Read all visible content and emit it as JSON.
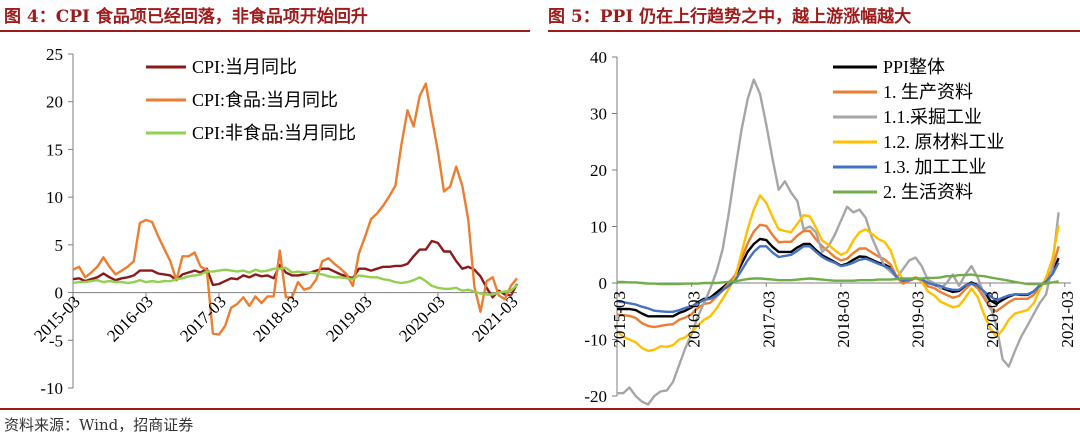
{
  "left_title": "图 4：CPI 食品项已经回落，非食品项开始回升",
  "right_title": "图 5：PPI 仍在上行趋势之中，越上游涨幅越大",
  "source": "资料来源：Wind，招商证券",
  "chart_data": [
    {
      "type": "line",
      "ylim": [
        -10,
        25
      ],
      "yticks": [
        -10,
        -5,
        0,
        5,
        10,
        15,
        20,
        25
      ],
      "x_start": "2015-03",
      "x_end": "2021-04",
      "xtick_labels": [
        "2015-03",
        "2016-03",
        "2017-03",
        "2018-03",
        "2019-03",
        "2020-03",
        "2021-03"
      ],
      "legend_position": "top-left",
      "series": [
        {
          "name": "CPI:当月同比",
          "color": "#8b1a1a",
          "values": [
            1.4,
            1.5,
            1.2,
            1.4,
            1.6,
            2.0,
            1.6,
            1.3,
            1.5,
            1.6,
            1.8,
            2.3,
            2.3,
            2.3,
            2.0,
            1.9,
            1.8,
            1.3,
            1.9,
            2.1,
            2.3,
            2.1,
            2.5,
            0.8,
            0.9,
            1.2,
            1.5,
            1.4,
            1.8,
            1.6,
            1.9,
            1.7,
            1.8,
            1.5,
            2.9,
            2.1,
            1.8,
            1.8,
            1.9,
            2.1,
            2.3,
            2.5,
            2.5,
            2.2,
            1.9,
            1.7,
            1.5,
            2.5,
            2.5,
            2.3,
            2.5,
            2.7,
            2.7,
            2.8,
            2.8,
            3.0,
            3.8,
            4.5,
            4.5,
            5.4,
            5.2,
            4.3,
            4.3,
            3.3,
            2.5,
            2.7,
            2.4,
            1.7,
            0.5,
            -0.5,
            0.2,
            -0.2,
            -0.3,
            0.9
          ]
        },
        {
          "name": "CPI:食品:当月同比",
          "color": "#ed7d31",
          "values": [
            2.4,
            2.7,
            1.6,
            2.1,
            2.7,
            3.7,
            2.7,
            1.9,
            2.3,
            2.7,
            3.3,
            7.3,
            7.6,
            7.4,
            5.9,
            4.6,
            3.3,
            1.3,
            3.8,
            3.8,
            4.2,
            2.7,
            2.4,
            -4.3,
            -4.4,
            -3.5,
            -1.6,
            -1.2,
            -0.5,
            -1.4,
            -0.4,
            -1.1,
            -0.4,
            -0.4,
            4.4,
            -0.5,
            -0.5,
            1.1,
            0.3,
            0.5,
            1.4,
            3.3,
            3.6,
            3.0,
            2.5,
            1.9,
            0.7,
            4.1,
            5.8,
            7.7,
            8.3,
            9.1,
            10.1,
            11.2,
            15.5,
            19.1,
            17.4,
            20.6,
            21.9,
            18.3,
            14.8,
            10.6,
            11.1,
            13.2,
            11.2,
            7.6,
            0.6,
            -2.0,
            1.2,
            1.6,
            -0.3,
            -0.7,
            0.7,
            1.5
          ]
        },
        {
          "name": "CPI:非食品:当月同比",
          "color": "#92d050",
          "values": [
            1.0,
            1.1,
            1.1,
            1.2,
            1.3,
            1.1,
            1.2,
            1.1,
            1.1,
            1.0,
            1.1,
            1.3,
            1.1,
            1.2,
            1.1,
            1.2,
            1.2,
            1.4,
            1.5,
            1.7,
            1.8,
            1.9,
            2.2,
            2.2,
            2.3,
            2.4,
            2.3,
            2.2,
            2.3,
            2.1,
            2.4,
            2.2,
            2.3,
            2.5,
            2.5,
            2.6,
            2.1,
            2.2,
            2.1,
            2.1,
            2.0,
            1.9,
            1.7,
            1.6,
            1.6,
            1.5,
            1.4,
            1.8,
            1.7,
            1.6,
            1.6,
            1.4,
            1.3,
            1.1,
            1.0,
            1.1,
            1.3,
            1.6,
            1.2,
            0.7,
            0.5,
            0.4,
            0.4,
            0.5,
            0.2,
            0.3,
            0.1,
            -0.1,
            -0.2,
            -0.2,
            0.0,
            0.1,
            0.2,
            0.8
          ]
        }
      ]
    },
    {
      "type": "line",
      "ylim": [
        -20,
        40
      ],
      "yticks": [
        -20,
        -10,
        0,
        10,
        20,
        30,
        40
      ],
      "x_start": "2015-03",
      "x_end": "2021-04",
      "xtick_labels": [
        "2015-03",
        "2016-03",
        "2017-03",
        "2018-03",
        "2019-03",
        "2020-03",
        "2021-03"
      ],
      "legend_position": "top-right",
      "series": [
        {
          "name": "PPI整体",
          "color": "#000000",
          "values": [
            -4.6,
            -4.6,
            -4.6,
            -4.8,
            -5.4,
            -5.9,
            -5.9,
            -5.9,
            -5.9,
            -5.9,
            -5.3,
            -4.9,
            -4.3,
            -3.4,
            -2.8,
            -2.6,
            -1.7,
            -0.8,
            0.1,
            1.2,
            3.3,
            5.5,
            6.9,
            7.8,
            7.6,
            6.4,
            5.5,
            5.5,
            5.5,
            6.3,
            6.9,
            6.9,
            5.8,
            4.9,
            4.3,
            3.7,
            3.1,
            3.4,
            4.1,
            4.7,
            4.6,
            4.1,
            3.6,
            3.3,
            2.7,
            0.9,
            0.1,
            0.4,
            0.9,
            0.6,
            0.0,
            -0.3,
            -0.8,
            -1.2,
            -1.6,
            -1.4,
            -0.5,
            0.1,
            -0.4,
            -1.5,
            -3.1,
            -3.7,
            -3.0,
            -2.4,
            -2.0,
            -2.1,
            -2.1,
            -1.5,
            -0.4,
            0.3,
            1.7,
            4.4
          ]
        },
        {
          "name": "1. 生产资料",
          "color": "#ed7d31",
          "values": [
            -5.6,
            -5.7,
            -5.8,
            -6.2,
            -7.1,
            -7.6,
            -7.8,
            -7.6,
            -7.4,
            -7.3,
            -6.5,
            -6.1,
            -5.5,
            -4.4,
            -3.7,
            -3.5,
            -2.4,
            -1.3,
            0.0,
            1.4,
            4.2,
            7.0,
            9.1,
            10.3,
            10.1,
            8.5,
            7.2,
            7.3,
            7.3,
            8.4,
            9.2,
            9.2,
            7.7,
            6.5,
            5.6,
            4.6,
            4.0,
            4.3,
            5.3,
            6.1,
            6.1,
            5.4,
            4.7,
            4.2,
            3.3,
            1.0,
            -0.1,
            0.4,
            1.0,
            0.5,
            -0.6,
            -0.9,
            -1.6,
            -2.1,
            -2.6,
            -2.3,
            -1.1,
            -0.1,
            -0.9,
            -2.6,
            -4.5,
            -5.0,
            -4.2,
            -3.4,
            -2.8,
            -2.8,
            -2.8,
            -2.1,
            -0.6,
            0.6,
            2.4,
            6.5
          ]
        },
        {
          "name": "1.1.采掘工业",
          "color": "#a6a6a6",
          "values": [
            -19.5,
            -19.5,
            -18.5,
            -20.0,
            -21.0,
            -21.5,
            -20.0,
            -19.2,
            -19.0,
            -17.5,
            -14.5,
            -11.5,
            -9.0,
            -6.0,
            -3.5,
            -1.0,
            2.0,
            6.0,
            12.5,
            20.0,
            27.0,
            32.5,
            36.0,
            33.5,
            28.0,
            22.0,
            16.5,
            18.0,
            16.0,
            14.5,
            9.5,
            10.0,
            9.0,
            5.5,
            6.5,
            8.5,
            11.0,
            13.5,
            12.5,
            13.0,
            11.5,
            8.0,
            5.5,
            3.0,
            2.0,
            1.0,
            2.5,
            4.0,
            4.5,
            3.0,
            0.5,
            0.0,
            -1.0,
            0.0,
            1.5,
            -0.5,
            1.5,
            3.0,
            1.0,
            -2.0,
            -4.0,
            -7.5,
            -13.5,
            -14.8,
            -12.0,
            -9.5,
            -7.5,
            -5.5,
            -3.5,
            -2.0,
            3.0,
            12.5
          ]
        },
        {
          "name": "1.2. 原材料工业",
          "color": "#ffc000",
          "values": [
            -8.5,
            -9.5,
            -10.0,
            -10.5,
            -11.5,
            -12.0,
            -11.8,
            -11.2,
            -11.3,
            -11.0,
            -10.0,
            -9.6,
            -8.7,
            -7.5,
            -6.5,
            -5.9,
            -4.5,
            -2.8,
            -1.0,
            1.0,
            5.2,
            9.5,
            13.0,
            15.5,
            14.2,
            11.7,
            9.5,
            9.2,
            9.0,
            10.5,
            12.0,
            11.8,
            9.8,
            7.5,
            6.8,
            5.8,
            5.0,
            5.5,
            7.5,
            9.0,
            9.5,
            8.7,
            7.8,
            7.3,
            5.8,
            2.5,
            0.5,
            0.6,
            1.0,
            0.2,
            -1.5,
            -2.2,
            -3.3,
            -3.8,
            -4.3,
            -4.0,
            -2.6,
            -1.0,
            -2.5,
            -5.5,
            -8.0,
            -9.5,
            -8.3,
            -6.5,
            -5.4,
            -5.1,
            -4.8,
            -3.6,
            -1.1,
            1.0,
            4.2,
            10.2
          ]
        },
        {
          "name": "1.3. 加工工业",
          "color": "#4472c4",
          "values": [
            -3.2,
            -3.4,
            -3.6,
            -3.8,
            -4.2,
            -4.5,
            -4.9,
            -5.0,
            -5.1,
            -5.1,
            -4.8,
            -4.4,
            -4.1,
            -3.6,
            -3.0,
            -2.8,
            -2.2,
            -1.3,
            -0.5,
            0.5,
            2.2,
            4.0,
            5.5,
            6.5,
            6.5,
            5.4,
            4.6,
            4.8,
            5.0,
            5.7,
            6.5,
            6.5,
            5.5,
            4.6,
            4.0,
            3.6,
            3.0,
            3.2,
            3.6,
            4.1,
            4.3,
            3.9,
            3.4,
            3.0,
            2.5,
            1.0,
            0.4,
            0.6,
            0.9,
            0.6,
            0.0,
            -0.3,
            -0.5,
            -1.0,
            -1.2,
            -1.2,
            -0.4,
            -0.1,
            -0.5,
            -1.5,
            -2.3,
            -3.1,
            -2.6,
            -2.2,
            -2.0,
            -2.0,
            -2.0,
            -1.5,
            -0.5,
            0.3,
            1.5,
            3.6
          ]
        },
        {
          "name": "2. 生活资料",
          "color": "#70ad47",
          "values": [
            0.2,
            0.2,
            0.1,
            0.1,
            0.0,
            -0.1,
            -0.1,
            -0.2,
            -0.2,
            -0.2,
            -0.2,
            -0.1,
            -0.1,
            -0.1,
            0.0,
            0.0,
            0.0,
            0.1,
            0.2,
            0.3,
            0.5,
            0.7,
            0.8,
            0.8,
            0.7,
            0.6,
            0.5,
            0.5,
            0.5,
            0.6,
            0.7,
            0.8,
            0.7,
            0.6,
            0.5,
            0.4,
            0.4,
            0.4,
            0.4,
            0.5,
            0.5,
            0.5,
            0.6,
            0.6,
            0.6,
            0.7,
            0.8,
            0.8,
            0.8,
            0.8,
            0.9,
            0.9,
            1.0,
            1.2,
            1.2,
            1.4,
            1.4,
            1.5,
            1.3,
            1.2,
            1.0,
            0.8,
            0.6,
            0.4,
            0.2,
            0.0,
            -0.2,
            -0.2,
            -0.2,
            -0.1,
            0.1,
            0.3
          ]
        }
      ]
    }
  ]
}
